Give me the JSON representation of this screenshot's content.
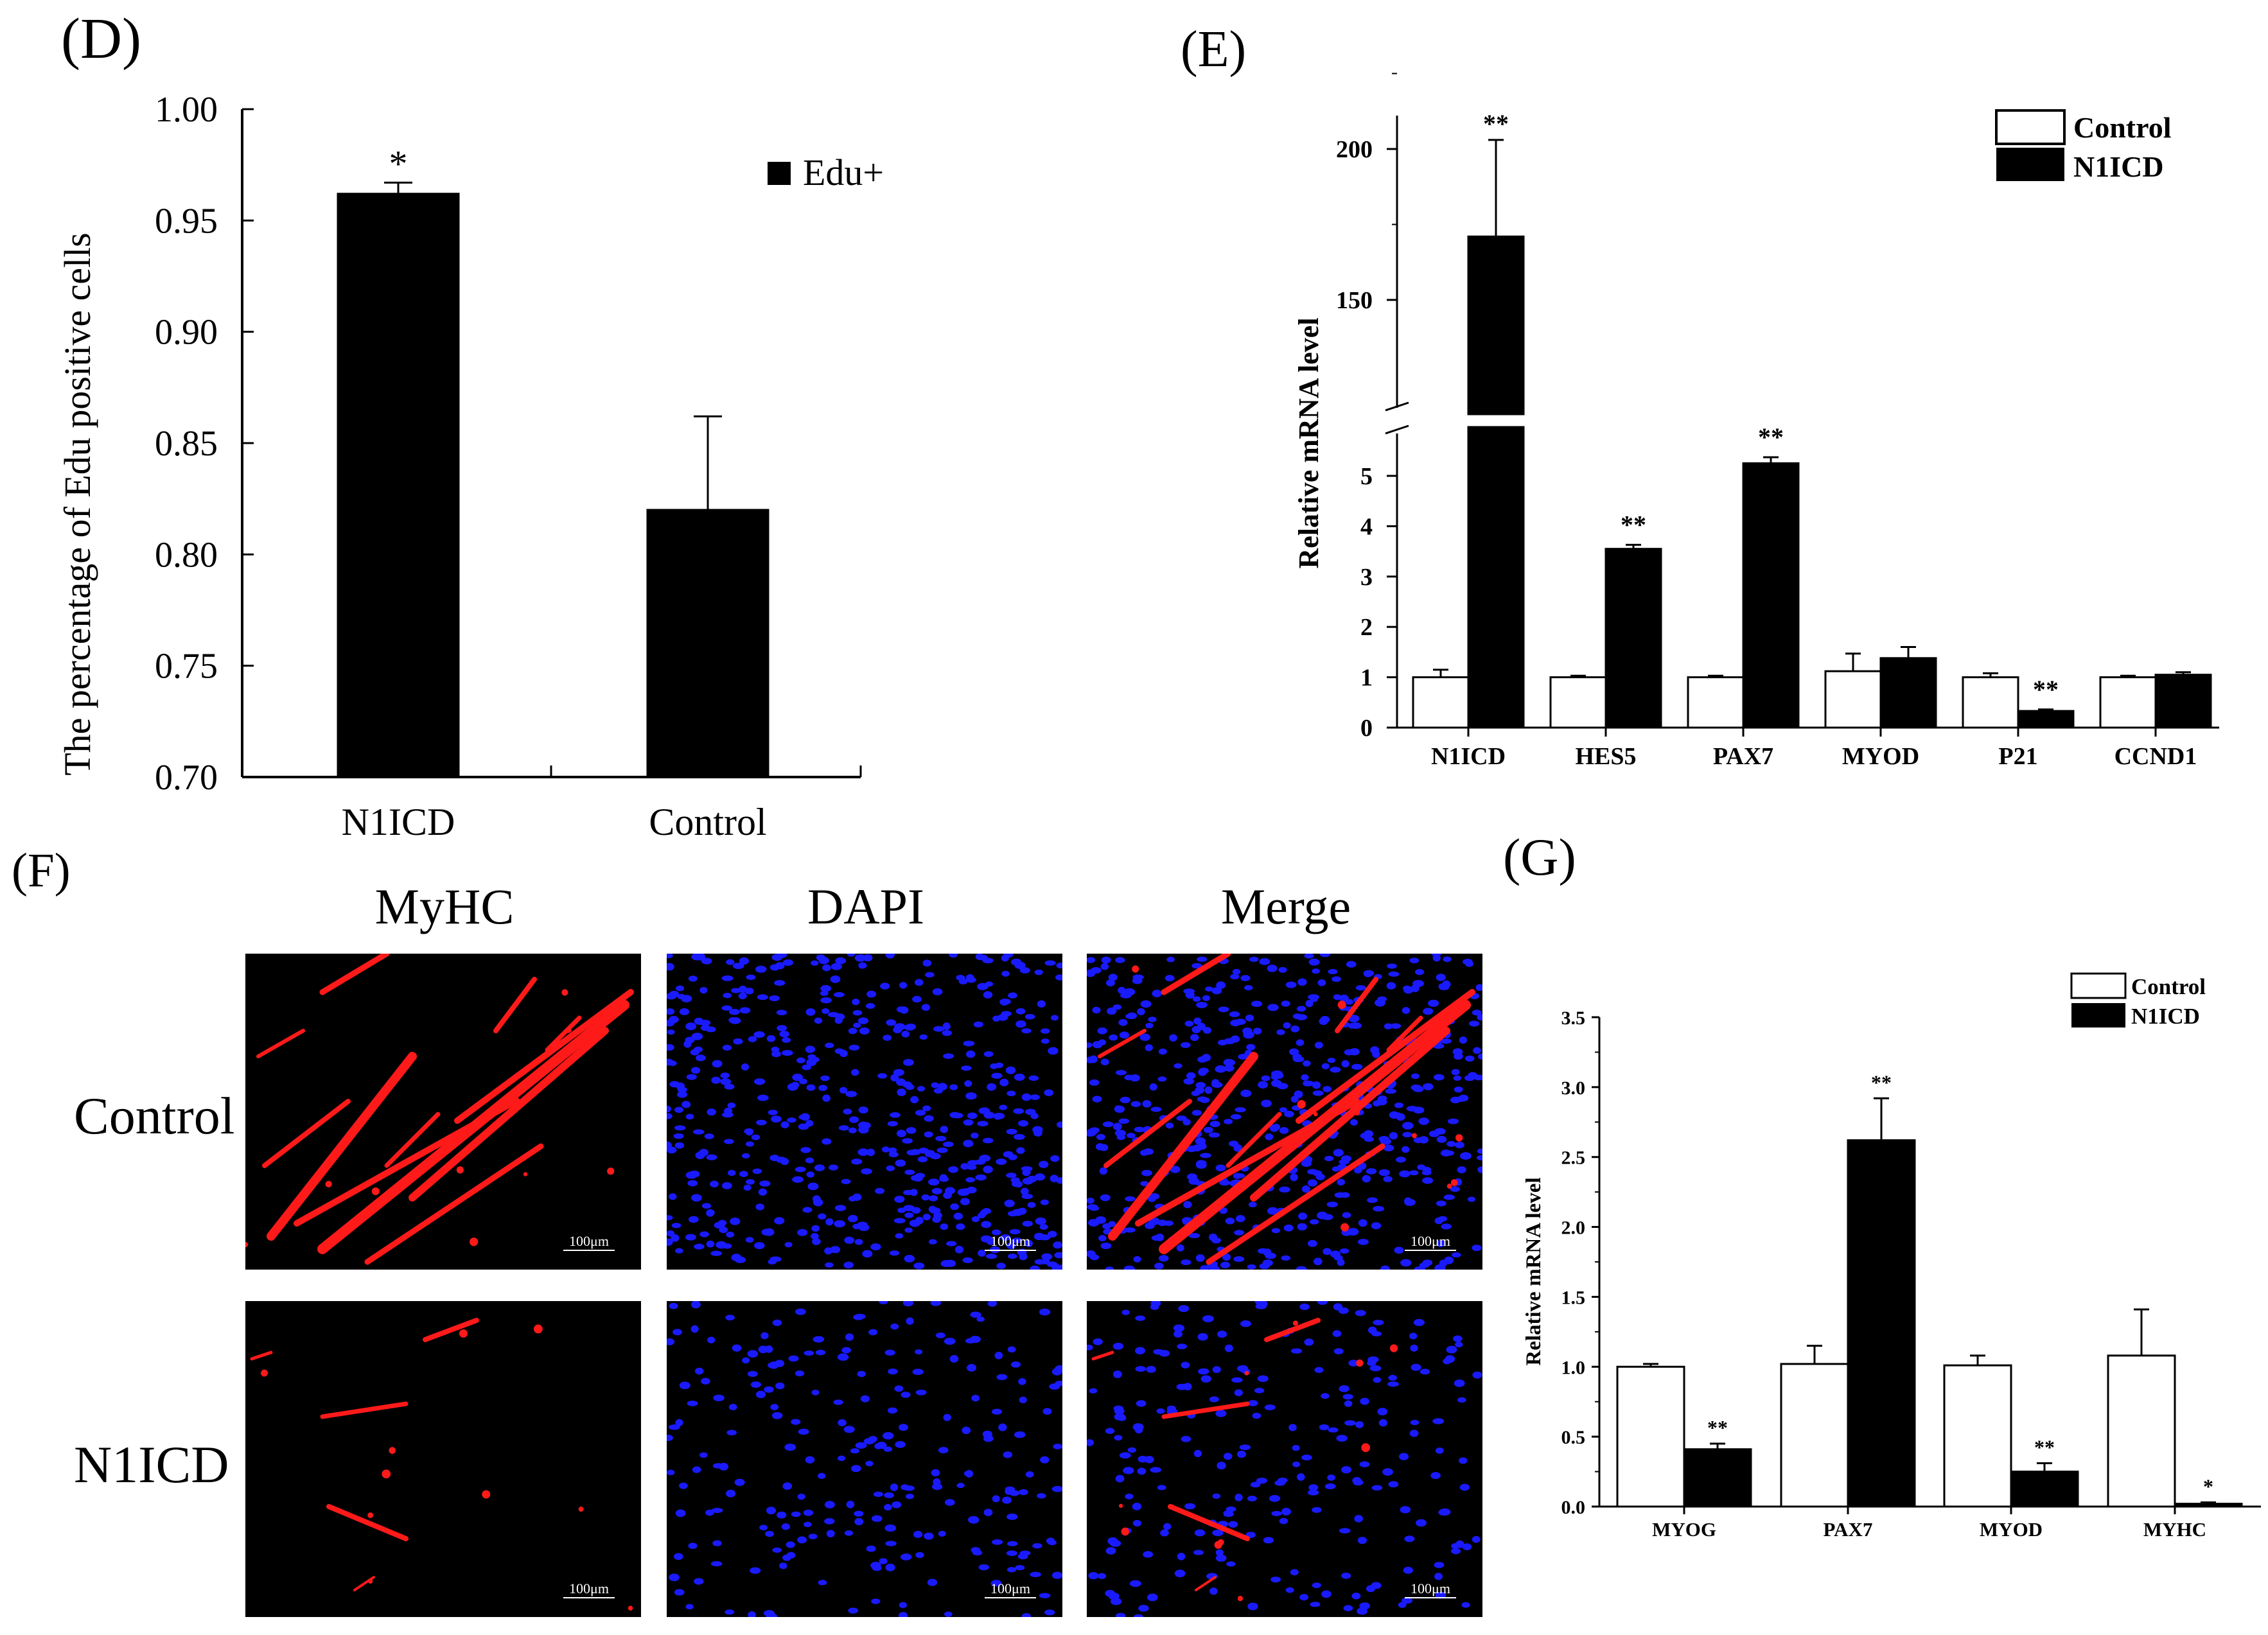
{
  "panels": {
    "D": "(D)",
    "E": "(E)",
    "F": "(F)",
    "G": "(G)"
  },
  "colors": {
    "filled": "#000000",
    "open": "#ffffff",
    "myhc_red": "#ff1a1a",
    "dapi_blue": "#1a1aff",
    "micrograph_bg": "#000000"
  },
  "chart_data": [
    {
      "panel": "D",
      "type": "bar",
      "ylabel": "The percentage of Edu positive cells",
      "xlabel": "",
      "ylim": [
        0.7,
        1.0
      ],
      "yticks": [
        "0.70",
        "0.75",
        "0.80",
        "0.85",
        "0.90",
        "0.95",
        "1.00"
      ],
      "categories": [
        "N1ICD",
        "Control"
      ],
      "series": [
        {
          "name": "Edu+",
          "values": [
            0.962,
            0.82
          ],
          "errors": [
            0.005,
            0.042
          ],
          "fill": "#000000"
        }
      ],
      "annotations": [
        "*",
        ""
      ],
      "legend": {
        "position": "top-right",
        "entries": [
          "Edu+"
        ]
      }
    },
    {
      "panel": "E",
      "type": "bar",
      "ylabel": "Relative mRNA level",
      "xlabel": "",
      "axis_break": {
        "lower": [
          0,
          5.8
        ],
        "upper": [
          110,
          210
        ]
      },
      "yticks_lower": [
        "0",
        "1",
        "2",
        "3",
        "4",
        "5"
      ],
      "yticks_upper": [
        "150",
        "200"
      ],
      "categories": [
        "N1ICD",
        "HES5",
        "PAX7",
        "MYOD",
        "P21",
        "CCND1"
      ],
      "series": [
        {
          "name": "Control",
          "values": [
            1.0,
            1.0,
            1.0,
            1.12,
            1.0,
            1.0
          ],
          "errors": [
            0.15,
            0.03,
            0.03,
            0.35,
            0.08,
            0.03
          ],
          "fill": "#ffffff"
        },
        {
          "name": "N1ICD",
          "values": [
            171,
            3.55,
            5.25,
            1.38,
            0.33,
            1.05
          ],
          "errors": [
            32,
            0.08,
            0.12,
            0.22,
            0.03,
            0.05
          ],
          "fill": "#000000"
        }
      ],
      "annotations": [
        "**",
        "**",
        "**",
        "",
        "**",
        ""
      ],
      "legend": {
        "position": "top-right",
        "entries": [
          "Control",
          "N1ICD"
        ]
      }
    },
    {
      "panel": "F",
      "type": "image_grid",
      "columns": [
        "MyHC",
        "DAPI",
        "Merge"
      ],
      "rows": [
        "Control",
        "N1ICD"
      ],
      "scale_bar": "100μm"
    },
    {
      "panel": "G",
      "type": "bar",
      "ylabel": "Relative mRNA level",
      "xlabel": "",
      "ylim": [
        0.0,
        3.5
      ],
      "yticks": [
        "0.0",
        "0.5",
        "1.0",
        "1.5",
        "2.0",
        "2.5",
        "3.0",
        "3.5"
      ],
      "categories": [
        "MYOG",
        "PAX7",
        "MYOD",
        "MYHC"
      ],
      "series": [
        {
          "name": "Control",
          "values": [
            1.0,
            1.02,
            1.01,
            1.08
          ],
          "errors": [
            0.02,
            0.13,
            0.07,
            0.33
          ],
          "fill": "#ffffff"
        },
        {
          "name": "N1ICD",
          "values": [
            0.41,
            2.62,
            0.25,
            0.02
          ],
          "errors": [
            0.04,
            0.3,
            0.06,
            0.01
          ],
          "fill": "#000000"
        }
      ],
      "annotations": [
        "**",
        "**",
        "**",
        "*"
      ],
      "legend": {
        "position": "top-right",
        "entries": [
          "Control",
          "N1ICD"
        ]
      }
    }
  ]
}
